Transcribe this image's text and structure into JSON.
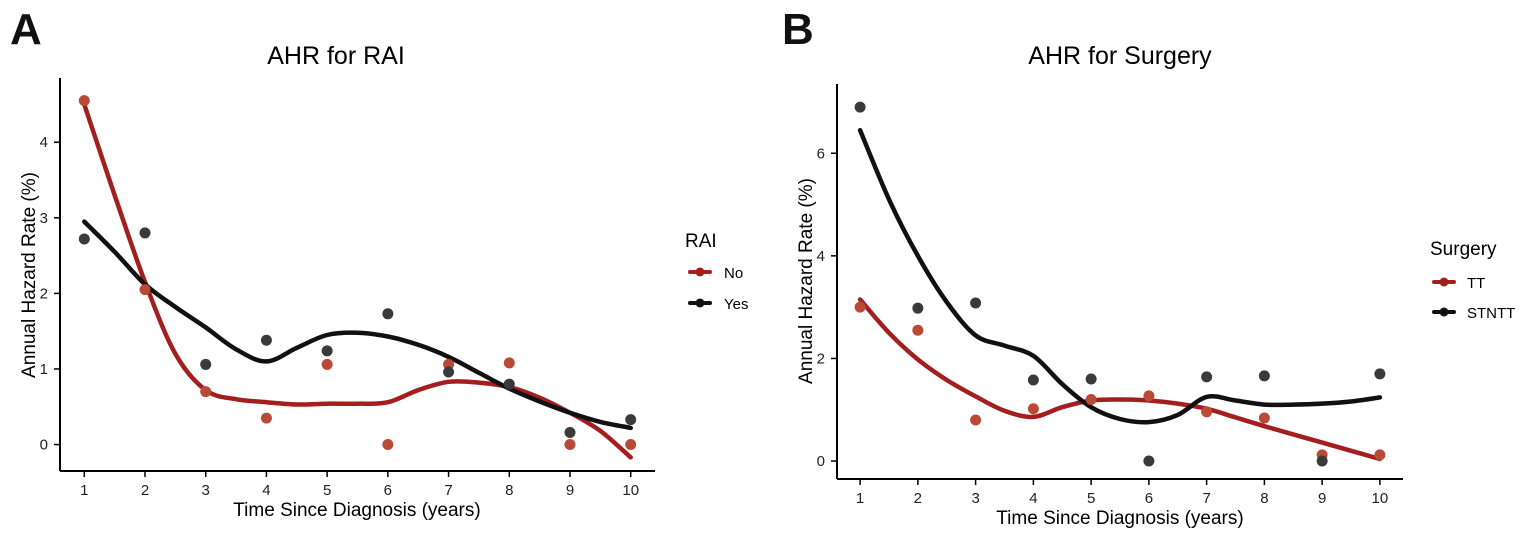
{
  "chart_data": [
    {
      "type": "scatter",
      "panel": "A",
      "title": "AHR for RAI",
      "xlabel": "Time Since Diagnosis (years)",
      "ylabel": "Annual Hazard Rate (%)",
      "xlim": [
        0.6,
        10.4
      ],
      "ylim": [
        -0.35,
        4.85
      ],
      "xticks": [
        1,
        2,
        3,
        4,
        5,
        6,
        7,
        8,
        9,
        10
      ],
      "yticks": [
        0,
        1,
        2,
        3,
        4
      ],
      "legend": {
        "title": "RAI",
        "position": "right",
        "entries": [
          "No",
          "Yes"
        ]
      },
      "series": [
        {
          "name": "No",
          "color": "#a31f1f",
          "point_color": "#b94a36",
          "points": {
            "x": [
              1,
              2,
              3,
              4,
              5,
              6,
              7,
              8,
              9,
              10
            ],
            "y": [
              4.55,
              2.05,
              0.7,
              0.35,
              1.06,
              0.0,
              1.06,
              1.08,
              0.0,
              0.0
            ]
          },
          "smooth": {
            "x": [
              1,
              1.5,
              2,
              2.5,
              3,
              3.5,
              4,
              4.5,
              5,
              5.5,
              6,
              6.5,
              7,
              7.5,
              8,
              8.5,
              9,
              9.5,
              10
            ],
            "y": [
              4.5,
              3.3,
              2.15,
              1.2,
              0.72,
              0.6,
              0.56,
              0.53,
              0.54,
              0.54,
              0.56,
              0.72,
              0.83,
              0.82,
              0.76,
              0.62,
              0.42,
              0.18,
              -0.17
            ]
          }
        },
        {
          "name": "Yes",
          "color": "#111111",
          "point_color": "#3a3a3a",
          "points": {
            "x": [
              1,
              2,
              3,
              4,
              5,
              6,
              7,
              8,
              9,
              10
            ],
            "y": [
              2.72,
              2.8,
              1.06,
              1.38,
              1.24,
              1.73,
              0.96,
              0.8,
              0.16,
              0.33
            ]
          },
          "smooth": {
            "x": [
              1,
              1.5,
              2,
              2.5,
              3,
              3.5,
              4,
              4.5,
              5,
              5.5,
              6,
              6.5,
              7,
              7.5,
              8,
              8.5,
              9,
              9.5,
              10
            ],
            "y": [
              2.95,
              2.55,
              2.12,
              1.82,
              1.55,
              1.26,
              1.1,
              1.28,
              1.45,
              1.48,
              1.43,
              1.32,
              1.16,
              0.95,
              0.74,
              0.57,
              0.42,
              0.3,
              0.22
            ]
          }
        }
      ]
    },
    {
      "type": "scatter",
      "panel": "B",
      "title": "AHR for Surgery",
      "xlabel": "Time Since Diagnosis (years)",
      "ylabel": "Annual Hazard Rate (%)",
      "xlim": [
        0.6,
        10.4
      ],
      "ylim": [
        -0.35,
        7.35
      ],
      "xticks": [
        1,
        2,
        3,
        4,
        5,
        6,
        7,
        8,
        9,
        10
      ],
      "yticks": [
        0,
        2,
        4,
        6
      ],
      "legend": {
        "title": "Surgery",
        "position": "right",
        "entries": [
          "TT",
          "STNTT"
        ]
      },
      "series": [
        {
          "name": "TT",
          "color": "#a31f1f",
          "point_color": "#b94a36",
          "points": {
            "x": [
              1,
              2,
              3,
              4,
              5,
              6,
              7,
              8,
              9,
              10
            ],
            "y": [
              3.0,
              2.55,
              0.8,
              1.02,
              1.2,
              1.27,
              0.96,
              0.84,
              0.12,
              0.12
            ]
          },
          "smooth": {
            "x": [
              1,
              1.5,
              2,
              2.5,
              3,
              3.5,
              4,
              4.5,
              5,
              5.5,
              6,
              6.5,
              7,
              7.5,
              8,
              8.5,
              9,
              9.5,
              10
            ],
            "y": [
              3.15,
              2.5,
              1.98,
              1.58,
              1.26,
              0.98,
              0.86,
              1.05,
              1.18,
              1.2,
              1.18,
              1.12,
              1.02,
              0.85,
              0.68,
              0.52,
              0.36,
              0.2,
              0.04
            ]
          }
        },
        {
          "name": "STNTT",
          "color": "#111111",
          "point_color": "#3a3a3a",
          "points": {
            "x": [
              1,
              2,
              3,
              4,
              5,
              6,
              7,
              8,
              9,
              10
            ],
            "y": [
              6.9,
              2.98,
              3.08,
              1.58,
              1.6,
              0.0,
              1.64,
              1.66,
              0.0,
              1.7
            ]
          },
          "smooth": {
            "x": [
              1,
              1.5,
              2,
              2.5,
              3,
              3.5,
              4,
              4.5,
              5,
              5.5,
              6,
              6.5,
              7,
              7.5,
              8,
              8.5,
              9,
              9.5,
              10
            ],
            "y": [
              6.45,
              5.1,
              4.0,
              3.1,
              2.45,
              2.25,
              2.05,
              1.5,
              1.05,
              0.82,
              0.76,
              0.9,
              1.25,
              1.18,
              1.1,
              1.1,
              1.12,
              1.16,
              1.24
            ]
          }
        }
      ]
    }
  ]
}
